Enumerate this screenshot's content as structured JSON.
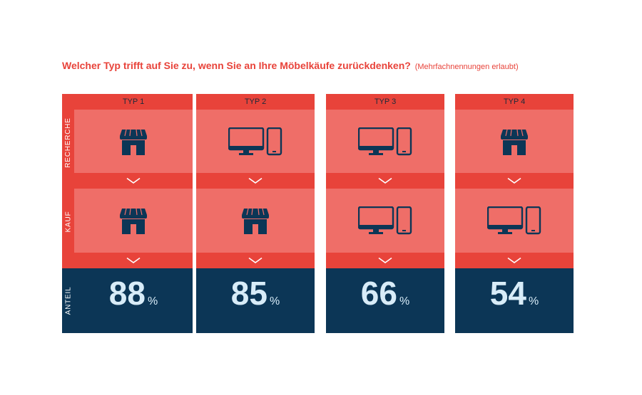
{
  "question": "Welcher Typ trifft auf Sie zu, wenn Sie an Ihre Möbelkäufe zurückdenken?",
  "question_hint": "(Mehrfachnennungen erlaubt)",
  "row_labels": {
    "recherche": "RECHERCHE",
    "kauf": "KAUF",
    "anteil": "ANTEIL"
  },
  "colors": {
    "accent": "#e8433a",
    "cell": "#ef6e68",
    "dark": "#0c3656",
    "value": "#d8ecf8"
  },
  "chart_data": {
    "type": "table",
    "categories": [
      "TYP 1",
      "TYP 2",
      "TYP 3",
      "TYP 4"
    ],
    "rows": [
      "RECHERCHE",
      "KAUF",
      "ANTEIL"
    ],
    "recherche_icons": [
      "store-icon",
      "devices-icon",
      "devices-icon",
      "store-icon"
    ],
    "kauf_icons": [
      "store-icon",
      "store-icon",
      "devices-icon",
      "devices-icon"
    ],
    "values": [
      88,
      85,
      66,
      54
    ],
    "unit": "%"
  },
  "types": [
    {
      "label": "TYP 1",
      "value": "88",
      "unit": "%"
    },
    {
      "label": "TYP 2",
      "value": "85",
      "unit": "%"
    },
    {
      "label": "TYP 3",
      "value": "66",
      "unit": "%"
    },
    {
      "label": "TYP 4",
      "value": "54",
      "unit": "%"
    }
  ]
}
